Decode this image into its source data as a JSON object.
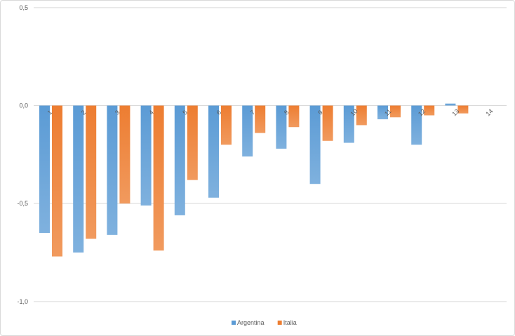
{
  "chart_data": {
    "type": "bar",
    "title": "",
    "xlabel": "",
    "ylabel": "",
    "ylim": [
      -1.0,
      0.5
    ],
    "y_ticks": [
      0.5,
      0.0,
      -0.5,
      -1.0
    ],
    "y_tick_labels": [
      "0,5",
      "0,0",
      "-0,5",
      "-1,0"
    ],
    "grid": true,
    "legend_position": "bottom",
    "categories": [
      "1",
      "2",
      "3",
      "4",
      "5",
      "6",
      "7",
      "8",
      "9",
      "10",
      "11",
      "12",
      "13",
      "14"
    ],
    "series": [
      {
        "name": "Argentina",
        "color": "#5b9bd5",
        "values": [
          -0.65,
          -0.75,
          -0.66,
          -0.51,
          -0.56,
          -0.47,
          -0.26,
          -0.22,
          -0.4,
          -0.19,
          -0.07,
          -0.2,
          0.01,
          0.0
        ]
      },
      {
        "name": "Italia",
        "color": "#ed7d31",
        "values": [
          -0.77,
          -0.68,
          -0.5,
          -0.74,
          -0.38,
          -0.2,
          -0.14,
          -0.11,
          -0.18,
          -0.1,
          -0.06,
          -0.05,
          -0.04,
          0.0
        ]
      }
    ]
  }
}
